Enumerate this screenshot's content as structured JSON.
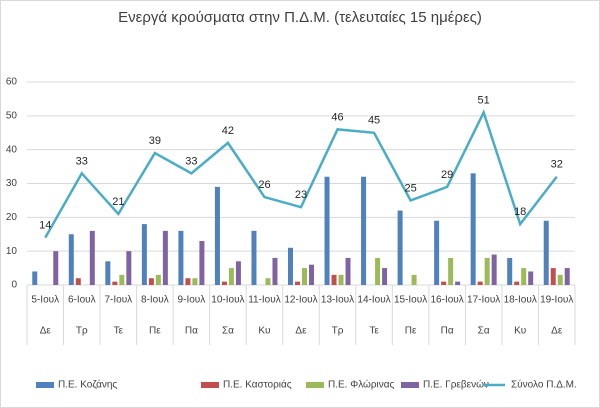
{
  "chart_data": {
    "type": "bar-line",
    "title": "Ενεργά κρούσματα στην Π.Δ.Μ. (τελευταίες 15 ημέρες)",
    "categories": [
      "5-Ιουλ",
      "6-Ιουλ",
      "7-Ιουλ",
      "8-Ιουλ",
      "9-Ιουλ",
      "10-Ιουλ",
      "11-Ιουλ",
      "12-Ιουλ",
      "13-Ιουλ",
      "14-Ιουλ",
      "15-Ιουλ",
      "16-Ιουλ",
      "17-Ιουλ",
      "18-Ιουλ",
      "19-Ιουλ"
    ],
    "weekdays": [
      "Δε",
      "Τρ",
      "Τε",
      "Πε",
      "Πα",
      "Σα",
      "Κυ",
      "Δε",
      "Τρ",
      "Τε",
      "Πε",
      "Πα",
      "Σα",
      "Κυ",
      "Δε"
    ],
    "series": [
      {
        "name": "Π.Ε. Κοζάνης",
        "type": "bar",
        "color": "#4f81bd",
        "values": [
          4,
          15,
          7,
          18,
          16,
          29,
          16,
          11,
          32,
          32,
          22,
          19,
          33,
          8,
          19
        ]
      },
      {
        "name": "Π.Ε. Καστοριάς",
        "type": "bar",
        "color": "#c0504d",
        "values": [
          0,
          2,
          1,
          2,
          2,
          1,
          0,
          1,
          3,
          0,
          0,
          1,
          1,
          1,
          5
        ]
      },
      {
        "name": "Π.Ε. Φλώρινας",
        "type": "bar",
        "color": "#9bbb59",
        "values": [
          0,
          0,
          3,
          3,
          2,
          5,
          2,
          5,
          3,
          8,
          3,
          8,
          8,
          5,
          3
        ]
      },
      {
        "name": "Π.Ε. Γρεβενών",
        "type": "bar",
        "color": "#8064a2",
        "values": [
          10,
          16,
          10,
          16,
          13,
          7,
          8,
          6,
          8,
          5,
          0,
          1,
          9,
          4,
          5
        ]
      },
      {
        "name": "Σύνολο Π.Δ.Μ.",
        "type": "line",
        "color": "#4bacc6",
        "values": [
          14,
          33,
          21,
          39,
          33,
          42,
          26,
          23,
          46,
          45,
          25,
          29,
          51,
          18,
          32
        ]
      }
    ],
    "ylim": [
      0,
      60
    ],
    "yticks": [
      0,
      10,
      20,
      30,
      40,
      50,
      60
    ],
    "grid": true
  }
}
